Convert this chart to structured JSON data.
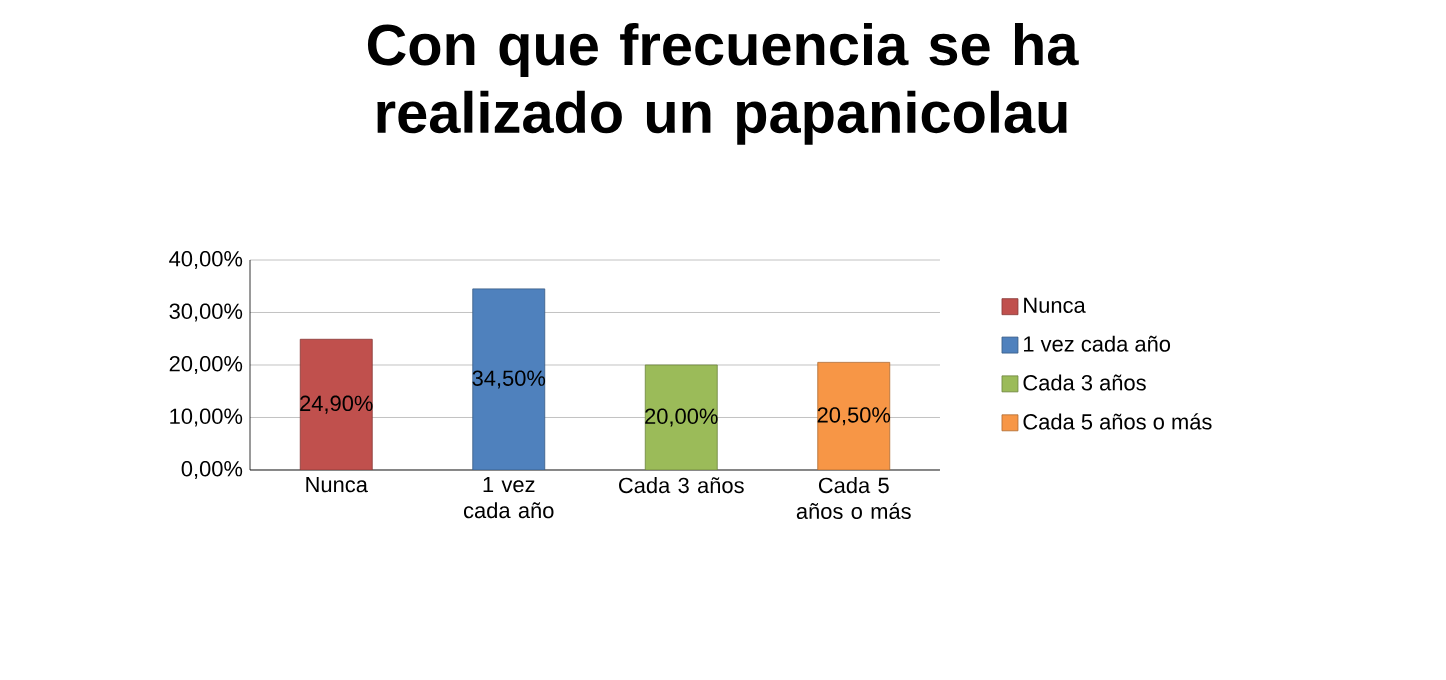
{
  "chart_data": {
    "type": "bar",
    "title": "Con que frecuencia se ha realizado un papanicolau",
    "categories": [
      "Nunca",
      "1 vez cada año",
      "Cada 3 años",
      "Cada 5 años o más"
    ],
    "series": [
      {
        "name": "Nunca",
        "color": "#c0504d",
        "values": [
          24.9,
          null,
          null,
          null
        ],
        "value_labels": [
          "24,90%",
          null,
          null,
          null
        ]
      },
      {
        "name": "1 vez cada año",
        "color": "#4f81bd",
        "values": [
          null,
          34.5,
          null,
          null
        ],
        "value_labels": [
          null,
          "34,50%",
          null,
          null
        ]
      },
      {
        "name": "Cada 3 años",
        "color": "#9bbb59",
        "values": [
          null,
          null,
          20.0,
          null
        ],
        "value_labels": [
          null,
          null,
          "20,00%",
          null
        ]
      },
      {
        "name": "Cada 5 años o más",
        "color": "#f79646",
        "values": [
          null,
          null,
          null,
          20.5
        ],
        "value_labels": [
          null,
          null,
          null,
          "20,50%"
        ]
      }
    ],
    "ylim": [
      0,
      40
    ],
    "yticks": [
      {
        "value": 0,
        "label": "0,00%"
      },
      {
        "value": 10,
        "label": "10,00%"
      },
      {
        "value": 20,
        "label": "20,00%"
      },
      {
        "value": 30,
        "label": "30,00%"
      },
      {
        "value": 40,
        "label": "40,00%"
      }
    ],
    "grid": "y",
    "legend": "right"
  }
}
